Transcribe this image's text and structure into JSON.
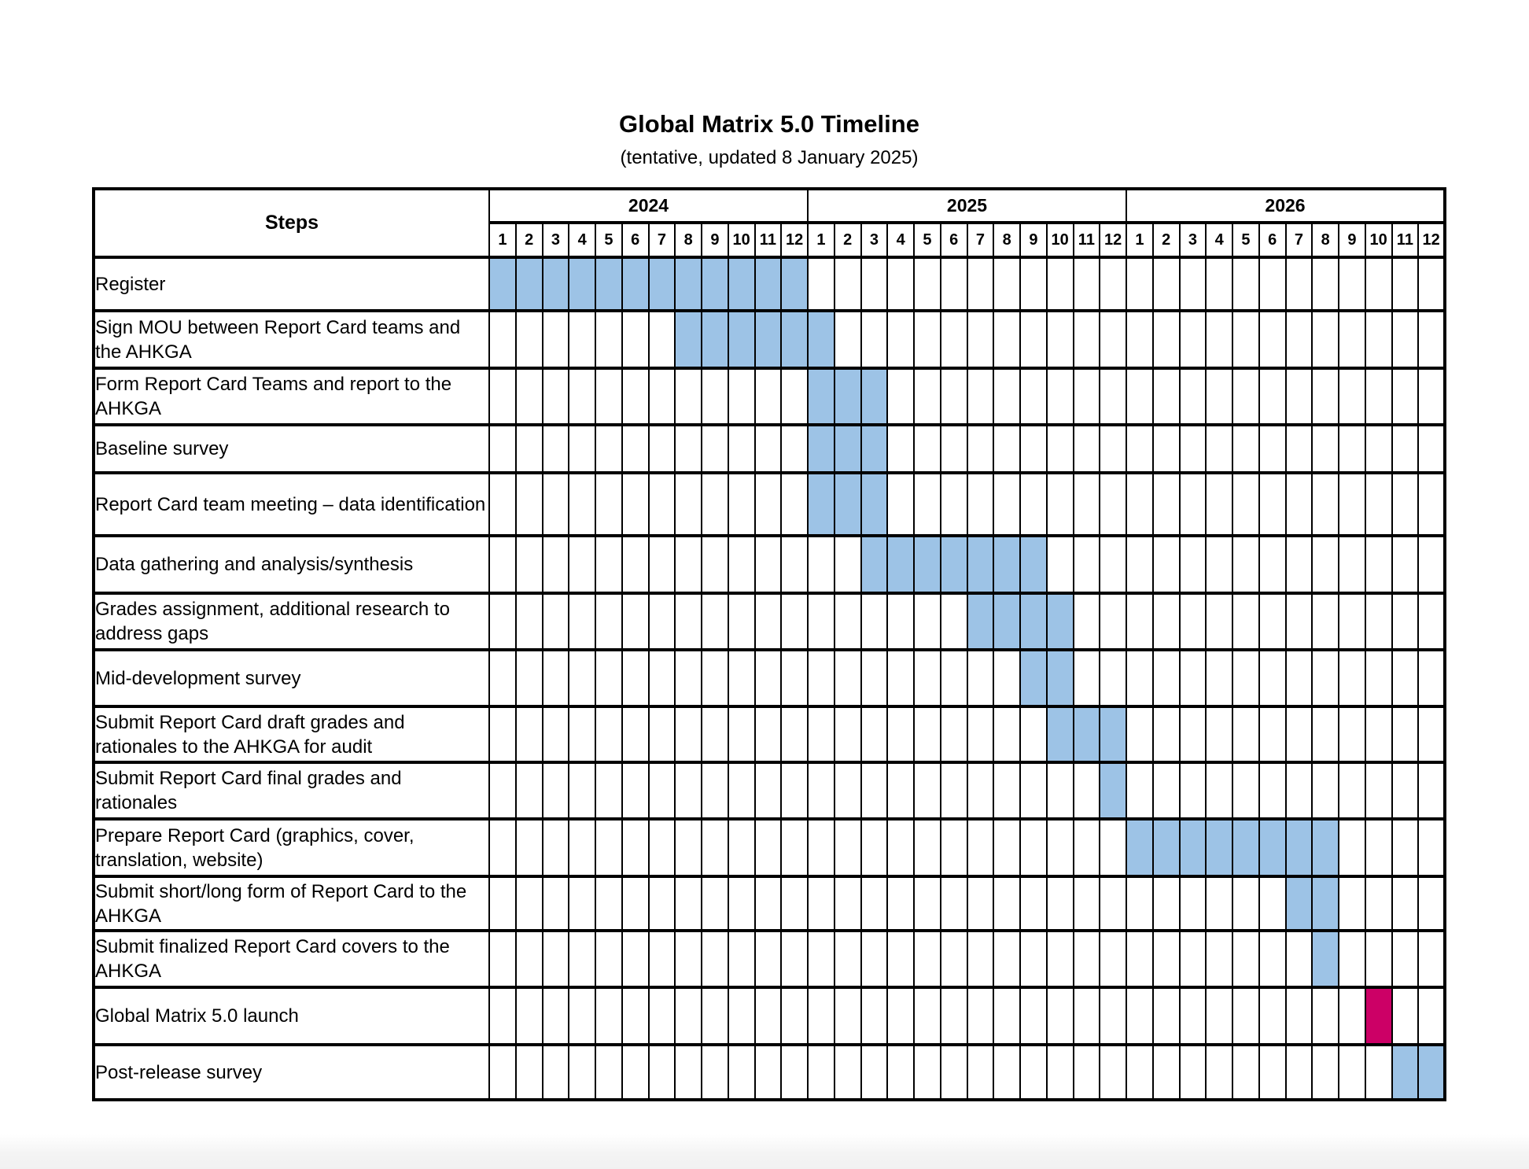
{
  "page": {
    "title": "Global Matrix 5.0 Timeline",
    "subtitle": "(tentative, updated 8 January 2025)"
  },
  "table": {
    "steps_header": "Steps",
    "years": [
      {
        "label": "2024",
        "months": [
          "1",
          "2",
          "3",
          "4",
          "5",
          "6",
          "7",
          "8",
          "9",
          "10",
          "11",
          "12"
        ]
      },
      {
        "label": "2025",
        "months": [
          "1",
          "2",
          "3",
          "4",
          "5",
          "6",
          "7",
          "8",
          "9",
          "10",
          "11",
          "12"
        ]
      },
      {
        "label": "2026",
        "months": [
          "1",
          "2",
          "3",
          "4",
          "5",
          "6",
          "7",
          "8",
          "9",
          "10",
          "11",
          "12"
        ]
      }
    ],
    "colors": {
      "bar_blue": "#9DC3E6",
      "bar_pink": "#CC0066",
      "grid": "#000000",
      "page_background": "#FFFFFF"
    },
    "tasks": [
      {
        "label": "Register",
        "start": "2024-1",
        "end": "2024-12",
        "color": "blue"
      },
      {
        "label": "Sign MOU between Report Card teams and the AHKGA",
        "start": "2024-8",
        "end": "2025-1",
        "color": "blue"
      },
      {
        "label": "Form Report Card Teams and report to the AHKGA",
        "start": "2025-1",
        "end": "2025-3",
        "color": "blue"
      },
      {
        "label": "Baseline survey",
        "start": "2025-1",
        "end": "2025-3",
        "color": "blue"
      },
      {
        "label": "Report Card team meeting – data identification",
        "start": "2025-1",
        "end": "2025-3",
        "color": "blue"
      },
      {
        "label": "Data gathering and analysis/synthesis",
        "start": "2025-3",
        "end": "2025-9",
        "color": "blue"
      },
      {
        "label": "Grades assignment, additional research to address gaps",
        "start": "2025-7",
        "end": "2025-10",
        "color": "blue"
      },
      {
        "label": "Mid-development survey",
        "start": "2025-9",
        "end": "2025-10",
        "color": "blue"
      },
      {
        "label": "Submit Report Card draft grades and rationales to the AHKGA for audit",
        "start": "2025-10",
        "end": "2025-12",
        "color": "blue"
      },
      {
        "label": "Submit Report Card final grades and rationales",
        "start": "2025-12",
        "end": "2025-12",
        "color": "blue"
      },
      {
        "label": "Prepare Report Card (graphics, cover, translation, website)",
        "start": "2026-1",
        "end": "2026-8",
        "color": "blue"
      },
      {
        "label": "Submit short/long form of Report Card to the AHKGA",
        "start": "2026-7",
        "end": "2026-8",
        "color": "blue"
      },
      {
        "label": "Submit finalized Report Card covers to the AHKGA",
        "start": "2026-8",
        "end": "2026-8",
        "color": "blue"
      },
      {
        "label": "Global Matrix 5.0 launch",
        "start": "2026-10",
        "end": "2026-10",
        "color": "pink"
      },
      {
        "label": "Post-release survey",
        "start": "2026-11",
        "end": "2026-12",
        "color": "blue"
      }
    ]
  }
}
